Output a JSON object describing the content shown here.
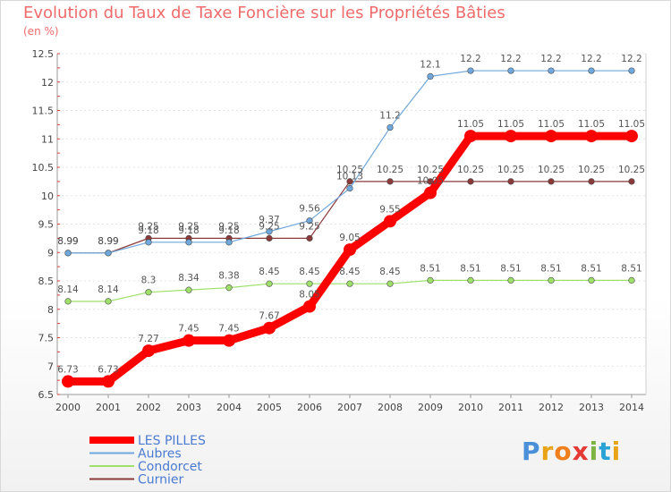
{
  "title": "Evolution du Taux de Taxe Foncière sur les Propriétés Bâties",
  "unit": "(en %)",
  "logo": "Proxiti",
  "chart_data": {
    "type": "line",
    "x": [
      2000,
      2001,
      2002,
      2003,
      2004,
      2005,
      2006,
      2007,
      2008,
      2009,
      2010,
      2011,
      2012,
      2013,
      2014
    ],
    "ylim": [
      6.5,
      12.5
    ],
    "yticks": [
      "6.5",
      "7",
      "7.5",
      "8",
      "8.5",
      "9",
      "9.5",
      "10",
      "10.5",
      "11",
      "11.5",
      "12",
      "12.5"
    ],
    "series": [
      {
        "name": "LES PILLES",
        "color": "#ff0000",
        "width": 9,
        "values": [
          6.73,
          6.73,
          7.27,
          7.45,
          7.45,
          7.67,
          8.05,
          9.05,
          9.55,
          10.05,
          11.05,
          11.05,
          11.05,
          11.05,
          11.05
        ],
        "labels": [
          "6.73",
          "6.73",
          "7.27",
          "7.45",
          "7.45",
          "7.67",
          "8.05",
          "9.05",
          "9.55",
          "10.05",
          "11.05",
          "11.05",
          "11.05",
          "11.05",
          "11.05"
        ]
      },
      {
        "name": "Aubres",
        "color": "#6fa8dc",
        "width": 1.2,
        "values": [
          8.99,
          8.99,
          9.18,
          9.18,
          9.18,
          9.37,
          9.56,
          10.13,
          11.2,
          12.1,
          12.2,
          12.2,
          12.2,
          12.2,
          12.2
        ],
        "labels": [
          "8.99",
          "8.99",
          "9.18",
          "9.18",
          "9.18",
          "9.37",
          "9.56",
          "10.13",
          "11.2",
          "12.1",
          "12.2",
          "12.2",
          "12.2",
          "12.2",
          "12.2"
        ]
      },
      {
        "name": "Condorcet",
        "color": "#9ee06a",
        "width": 1.2,
        "values": [
          8.14,
          8.14,
          8.3,
          8.34,
          8.38,
          8.45,
          8.45,
          8.45,
          8.45,
          8.51,
          8.51,
          8.51,
          8.51,
          8.51,
          8.51
        ],
        "labels": [
          "8.14",
          "8.14",
          "8.3",
          "8.34",
          "8.38",
          "8.45",
          "8.45",
          "8.45",
          "8.45",
          "8.51",
          "8.51",
          "8.51",
          "8.51",
          "8.51",
          "8.51"
        ]
      },
      {
        "name": "Curnier",
        "color": "#8b3a3a",
        "width": 1.2,
        "values": [
          8.99,
          8.99,
          9.25,
          9.25,
          9.25,
          9.25,
          9.25,
          10.25,
          10.25,
          10.25,
          10.25,
          10.25,
          10.25,
          10.25,
          10.25
        ],
        "labels": [
          "8.99",
          "8.99",
          "9.25",
          "9.25",
          "9.25",
          "9.25",
          "9.25",
          "10.25",
          "10.25",
          "10.25",
          "10.25",
          "10.25",
          "10.25",
          "10.25",
          "10.25"
        ]
      }
    ]
  }
}
